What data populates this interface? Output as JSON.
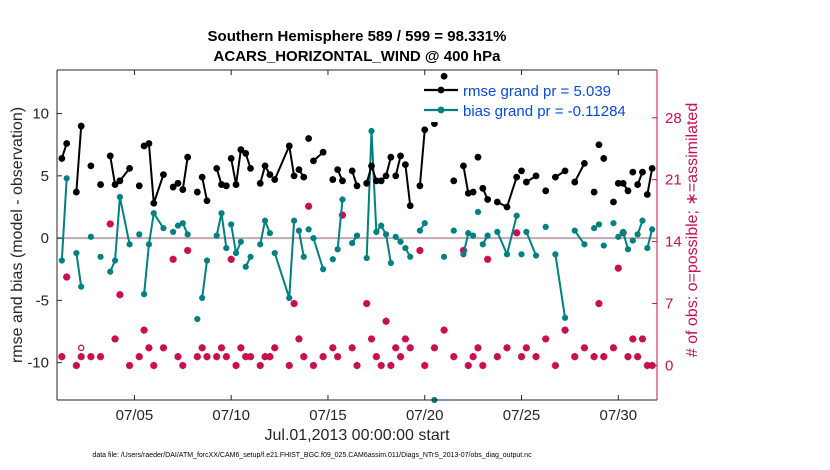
{
  "chart_data": {
    "type": "line",
    "title": "Southern Hemisphere 589 / 599 = 98.331%",
    "subtitle": "ACARS_HORIZONTAL_WIND @ 400 hPa",
    "xlabel": "Jul.01,2013 00:00:00 start",
    "ylabel": "rmse and bias (model - observation)",
    "ylabel_right": "# of obs: o=possible; ∗=assimilated",
    "xlim": [
      1.0,
      32.0
    ],
    "ylim": [
      -13,
      13.5
    ],
    "ylim_right": [
      -3.9,
      33.4
    ],
    "x_ticks": [
      {
        "value": 5,
        "label": "07/05"
      },
      {
        "value": 10,
        "label": "07/10"
      },
      {
        "value": 15,
        "label": "07/15"
      },
      {
        "value": 20,
        "label": "07/20"
      },
      {
        "value": 25,
        "label": "07/25"
      },
      {
        "value": 30,
        "label": "07/30"
      }
    ],
    "y_ticks": [
      {
        "value": 10,
        "label": "10"
      },
      {
        "value": 5,
        "label": "5"
      },
      {
        "value": 0,
        "label": "0"
      },
      {
        "value": -5,
        "label": "-5"
      },
      {
        "value": -10,
        "label": "-10"
      }
    ],
    "y_ticks_right": [
      {
        "value": 28,
        "label": "28"
      },
      {
        "value": 21,
        "label": "21"
      },
      {
        "value": 14,
        "label": "14"
      },
      {
        "value": 7,
        "label": "7"
      },
      {
        "value": 0,
        "label": "0"
      }
    ],
    "legend": {
      "position": "top-right",
      "entries": [
        "rmse grand pr = 5.039",
        "bias grand pr = -0.11284"
      ]
    },
    "series": [
      {
        "name": "rmse grand pr = 5.039",
        "color": "#000000",
        "x": [
          1.25,
          1.5,
          2.0,
          2.25,
          2.75,
          3.25,
          3.75,
          4.0,
          4.25,
          4.75,
          5.25,
          5.5,
          5.75,
          6.0,
          6.5,
          7.0,
          7.25,
          7.5,
          7.75,
          8.25,
          8.5,
          8.75,
          9.25,
          9.5,
          9.75,
          10.0,
          10.25,
          10.5,
          10.75,
          11.0,
          11.5,
          11.75,
          12.0,
          12.25,
          13.0,
          13.25,
          13.5,
          13.75,
          14.0,
          14.25,
          14.75,
          15.25,
          15.5,
          15.75,
          16.25,
          16.5,
          17.0,
          17.25,
          17.5,
          17.75,
          18.0,
          18.25,
          18.5,
          18.75,
          19.0,
          19.25,
          19.75,
          20.0,
          20.5,
          21.0,
          21.5,
          22.0,
          22.25,
          22.5,
          22.75,
          23.0,
          23.25,
          23.75,
          24.25,
          24.75,
          25.0,
          25.25,
          25.75,
          26.25,
          26.75,
          27.25,
          27.75,
          28.25,
          28.75,
          29.0,
          29.25,
          29.75,
          30.0,
          30.25,
          30.5,
          30.75,
          31.0,
          31.25,
          31.5,
          31.75
        ],
        "y": [
          6.4,
          7.6,
          3.7,
          9.0,
          5.8,
          4.3,
          6.6,
          4.3,
          4.6,
          5.6,
          4.2,
          7.4,
          7.6,
          2.8,
          5.1,
          4.1,
          4.4,
          3.9,
          6.5,
          3.7,
          4.9,
          3.0,
          5.6,
          4.3,
          4.2,
          6.4,
          4.3,
          7.1,
          6.8,
          5.6,
          4.4,
          5.8,
          5.1,
          4.7,
          7.4,
          5.0,
          5.5,
          4.9,
          8.0,
          6.2,
          6.9,
          4.7,
          5.5,
          4.6,
          5.4,
          4.2,
          4.4,
          5.8,
          4.6,
          4.6,
          5.0,
          6.5,
          5.0,
          6.6,
          5.9,
          2.6,
          4.2,
          8.7,
          9.2,
          13.0,
          4.6,
          5.8,
          3.6,
          3.7,
          6.5,
          4.0,
          3.1,
          2.9,
          2.5,
          4.9,
          5.4,
          4.5,
          5.0,
          3.8,
          4.9,
          5.4,
          4.5,
          6.0,
          3.7,
          7.5,
          6.4,
          2.9,
          4.4,
          4.4,
          3.8,
          5.3,
          4.3,
          5.3,
          3.5,
          5.6
        ],
        "breaks_after": [
          1,
          3,
          4,
          5,
          9,
          10,
          14,
          15,
          16,
          18,
          19,
          21,
          24,
          27,
          29,
          32,
          35,
          37,
          38,
          40,
          41,
          43,
          45,
          51,
          53,
          55,
          57,
          58,
          59,
          60,
          63,
          64,
          66,
          69,
          70,
          72,
          73,
          75,
          77,
          78,
          79,
          80,
          81,
          84,
          85,
          87
        ]
      },
      {
        "name": "bias grand pr = -0.11284",
        "color": "#008080",
        "x": [
          1.25,
          1.5,
          2.0,
          2.25,
          2.75,
          3.25,
          3.75,
          4.0,
          4.25,
          4.75,
          5.25,
          5.5,
          5.75,
          6.0,
          6.5,
          7.0,
          7.25,
          7.5,
          7.75,
          8.25,
          8.5,
          8.75,
          9.25,
          9.5,
          9.75,
          10.0,
          10.25,
          10.5,
          10.75,
          11.0,
          11.5,
          11.75,
          12.0,
          12.25,
          13.0,
          13.25,
          13.5,
          13.75,
          14.0,
          14.25,
          14.75,
          15.25,
          15.5,
          15.75,
          16.25,
          16.5,
          17.0,
          17.25,
          17.5,
          17.75,
          18.0,
          18.25,
          18.5,
          18.75,
          19.0,
          19.25,
          19.75,
          20.0,
          20.5,
          21.0,
          21.5,
          22.0,
          22.25,
          22.5,
          22.75,
          23.0,
          23.25,
          23.75,
          24.25,
          24.75,
          25.0,
          25.25,
          25.75,
          26.25,
          26.75,
          27.25,
          27.75,
          28.25,
          28.75,
          29.0,
          29.25,
          29.75,
          30.0,
          30.25,
          30.5,
          30.75,
          31.0,
          31.25,
          31.5,
          31.75
        ],
        "y": [
          -1.8,
          4.8,
          -1.2,
          -3.9,
          0.1,
          -1.5,
          -2.7,
          -1.8,
          3.3,
          -0.5,
          0.3,
          -4.5,
          -0.5,
          2.0,
          0.8,
          0.5,
          1.0,
          1.2,
          0.3,
          -6.5,
          -4.8,
          -1.8,
          0.2,
          2.0,
          -0.8,
          1.1,
          -1.2,
          -0.3,
          -2.3,
          -1.5,
          -0.5,
          1.4,
          0.4,
          -1.2,
          -4.8,
          1.4,
          0.6,
          -1.5,
          0.7,
          0.0,
          -2.5,
          -1.7,
          -0.9,
          3.1,
          -0.4,
          0.2,
          -1.6,
          8.6,
          0.5,
          1.0,
          0.3,
          -2.0,
          0.1,
          -0.3,
          -0.8,
          -1.5,
          0.6,
          1.2,
          -13.5,
          -1.5,
          0.6,
          -1.3,
          0.4,
          0.2,
          2.1,
          -0.5,
          0.2,
          0.5,
          -1.3,
          1.8,
          -1.3,
          0.5,
          -1.4,
          0.9,
          -1.3,
          -6.4,
          0.6,
          -0.5,
          0.8,
          1.1,
          -0.6,
          1.2,
          0.1,
          0.5,
          -0.9,
          -0.2,
          0.3,
          1.4,
          -0.8,
          0.7
        ],
        "breaks_after": [
          1,
          3,
          4,
          5,
          9,
          10,
          14,
          15,
          16,
          18,
          19,
          21,
          24,
          27,
          29,
          32,
          35,
          37,
          38,
          40,
          41,
          43,
          45,
          51,
          53,
          55,
          57,
          58,
          59,
          60,
          63,
          64,
          66,
          69,
          70,
          72,
          73,
          75,
          77,
          78,
          79,
          80,
          81,
          84,
          85,
          87
        ]
      }
    ],
    "obs_counts": {
      "color": "#c8104e",
      "x": [
        1.25,
        1.5,
        2.0,
        2.25,
        2.75,
        3.25,
        3.75,
        4.0,
        4.25,
        4.75,
        5.25,
        5.5,
        5.75,
        6.0,
        6.5,
        7.0,
        7.25,
        7.5,
        7.75,
        8.25,
        8.5,
        8.75,
        9.25,
        9.5,
        9.75,
        10.0,
        10.25,
        10.5,
        10.75,
        11.0,
        11.5,
        11.75,
        12.0,
        12.25,
        13.0,
        13.25,
        13.5,
        13.75,
        14.0,
        14.25,
        14.75,
        15.25,
        15.5,
        15.75,
        16.25,
        16.5,
        17.0,
        17.25,
        17.5,
        17.75,
        18.0,
        18.25,
        18.5,
        18.75,
        19.0,
        19.25,
        19.75,
        20.0,
        20.5,
        21.0,
        21.5,
        22.0,
        22.25,
        22.5,
        22.75,
        23.0,
        23.25,
        23.75,
        24.25,
        24.75,
        25.0,
        25.25,
        25.75,
        26.25,
        26.75,
        27.25,
        27.75,
        28.25,
        28.75,
        29.0,
        29.25,
        29.75,
        30.0,
        30.25,
        30.5,
        30.75,
        31.0,
        31.25,
        31.5,
        31.75
      ],
      "possible": [
        1,
        10,
        0,
        2,
        1,
        1,
        16,
        3,
        8,
        0,
        1,
        4,
        2,
        0,
        2,
        12,
        1,
        0,
        13,
        1,
        2,
        1,
        1,
        2,
        1,
        12,
        0,
        2,
        1,
        1,
        0,
        1,
        1,
        2,
        0,
        7,
        3,
        1,
        18,
        0,
        1,
        2,
        1,
        17,
        2,
        0,
        7,
        3,
        1,
        0,
        5,
        0,
        2,
        1,
        3,
        2,
        13,
        0,
        2,
        4,
        1,
        13,
        0,
        1,
        2,
        0,
        12,
        1,
        2,
        15,
        1,
        2,
        1,
        3,
        0,
        4,
        1,
        2,
        1,
        7,
        1,
        2,
        11,
        15,
        1,
        3,
        1,
        3,
        0,
        0
      ],
      "assimilated": [
        1,
        10,
        0,
        1,
        1,
        1,
        16,
        3,
        8,
        0,
        1,
        4,
        2,
        0,
        2,
        12,
        1,
        0,
        13,
        1,
        2,
        1,
        1,
        2,
        1,
        12,
        0,
        2,
        1,
        1,
        0,
        1,
        1,
        2,
        0,
        7,
        3,
        1,
        18,
        0,
        1,
        2,
        1,
        17,
        2,
        0,
        7,
        3,
        1,
        0,
        5,
        0,
        2,
        1,
        3,
        2,
        13,
        0,
        2,
        4,
        1,
        13,
        0,
        1,
        2,
        0,
        12,
        1,
        2,
        15,
        1,
        2,
        1,
        3,
        0,
        4,
        1,
        2,
        1,
        7,
        1,
        2,
        11,
        15,
        1,
        3,
        1,
        3,
        0,
        0
      ]
    }
  },
  "footer": {
    "data_file": "data file: /Users/raeder/DAI/ATM_forcXX/CAM6_setup/f.e21.FHIST_BGC.f09_025.CAM6assim.011/Diags_NTrS_2013-07/obs_diag_output.nc"
  }
}
